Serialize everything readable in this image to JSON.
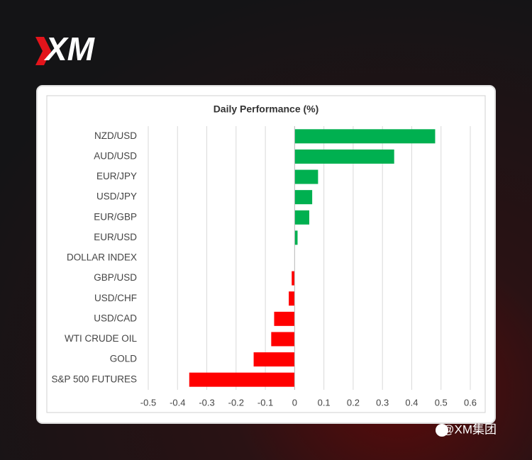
{
  "brand": "XM",
  "watermark": "@XM集团",
  "chart_data": {
    "type": "hbar",
    "title": "Daily Performance (%)",
    "categories": [
      "NZD/USD",
      "AUD/USD",
      "EUR/JPY",
      "USD/JPY",
      "EUR/GBP",
      "EUR/USD",
      "DOLLAR INDEX",
      "GBP/USD",
      "USD/CHF",
      "USD/CAD",
      "WTI CRUDE OIL",
      "GOLD",
      "S&P 500 FUTURES"
    ],
    "values": [
      0.48,
      0.34,
      0.08,
      0.06,
      0.05,
      0.01,
      0,
      -0.01,
      -0.02,
      -0.07,
      -0.08,
      -0.14,
      -0.36
    ],
    "positive_color": "#00b050",
    "negative_color": "#ff0000",
    "xlim": [
      -0.5,
      0.6
    ],
    "xticks": [
      -0.5,
      -0.4,
      -0.3,
      -0.2,
      -0.1,
      0,
      0.1,
      0.2,
      0.3,
      0.4,
      0.5,
      0.6
    ],
    "grid": true
  }
}
